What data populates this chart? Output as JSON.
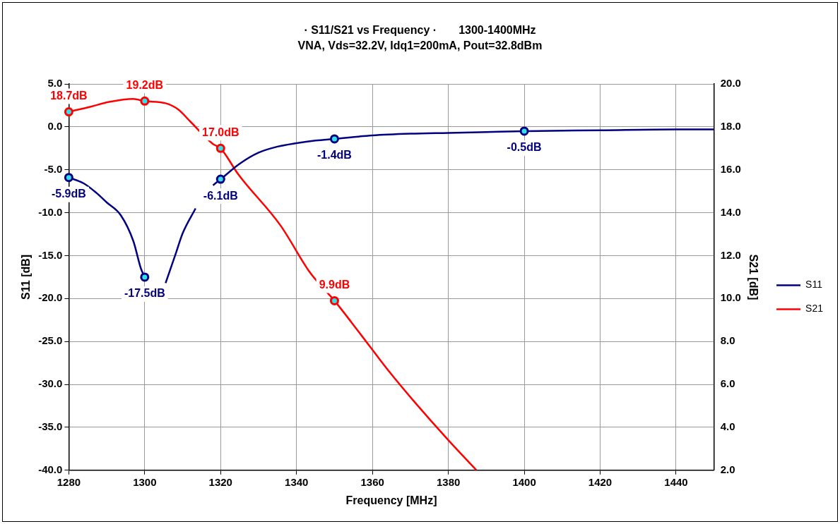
{
  "chart_data": {
    "type": "line",
    "title": "· S11/S21 vs Frequency ·       1300-1400MHz",
    "subtitle": "VNA, Vds=32.2V, Idq1=200mA, Pout=32.8dBm",
    "xlabel": "Frequency [MHz]",
    "ylabel": "S11 [dB]",
    "y2label": "S21 [dB]",
    "xlim": [
      1280,
      1450
    ],
    "xticks": [
      1280,
      1300,
      1320,
      1340,
      1360,
      1380,
      1400,
      1420,
      1440
    ],
    "ylim": [
      -40,
      5
    ],
    "yticks": [
      {
        "value": -40,
        "label": "-40.0"
      },
      {
        "value": -35,
        "label": "-35.0"
      },
      {
        "value": -30,
        "label": "-30.0"
      },
      {
        "value": -25,
        "label": "-25.0"
      },
      {
        "value": -20,
        "label": "-20.0"
      },
      {
        "value": -15,
        "label": "-15.0"
      },
      {
        "value": -10,
        "label": "-10.0"
      },
      {
        "value": -5,
        "label": "-5.0"
      },
      {
        "value": 0,
        "label": "0.0"
      },
      {
        "value": 5,
        "label": "5.0"
      }
    ],
    "y2lim": [
      2,
      20
    ],
    "y2ticks": [
      {
        "value": 2,
        "label": "2.0"
      },
      {
        "value": 4,
        "label": "4.0"
      },
      {
        "value": 6,
        "label": "6.0"
      },
      {
        "value": 8,
        "label": "8.0"
      },
      {
        "value": 10,
        "label": "10.0"
      },
      {
        "value": 12,
        "label": "12.0"
      },
      {
        "value": 14,
        "label": "14.0"
      },
      {
        "value": 16,
        "label": "16.0"
      },
      {
        "value": 18,
        "label": "18.0"
      },
      {
        "value": 20,
        "label": "20.0"
      }
    ],
    "grid": true,
    "legend": "right",
    "line_style": "solid",
    "series": [
      {
        "name": "S11",
        "color": "#000080",
        "x": [
          1280,
          1284,
          1287.3,
          1290,
          1293.7,
          1297,
          1299,
          1300,
          1302,
          1303.5,
          1305.5,
          1308,
          1310,
          1313.4,
          1316,
          1318,
          1320,
          1325,
          1330,
          1335,
          1340,
          1345,
          1350,
          1360,
          1370,
          1380,
          1390,
          1400,
          1420,
          1440,
          1450
        ],
        "values": [
          -5.9,
          -6.6,
          -7.7,
          -8.8,
          -10.3,
          -13.3,
          -16.5,
          -17.5,
          null,
          null,
          -18.2,
          -15,
          -12.4,
          -9.5,
          null,
          -6.8,
          -6.1,
          -4.3,
          -3,
          -2.3,
          -1.9,
          -1.6,
          -1.4,
          -1,
          -0.8,
          -0.7,
          -0.6,
          -0.5,
          -0.4,
          -0.3,
          -0.3
        ],
        "value_labels": [
          "-5.9dB",
          null,
          null,
          null,
          null,
          null,
          null,
          "-17.5dB",
          null,
          null,
          null,
          null,
          null,
          null,
          null,
          null,
          "-6.1dB",
          null,
          null,
          null,
          null,
          null,
          "-1.4dB",
          null,
          null,
          null,
          null,
          "-0.5dB",
          null,
          null,
          null
        ]
      },
      {
        "name": "S21",
        "color": "#ff0000",
        "axis": "y2",
        "x": [
          1280,
          1286,
          1290.6,
          1297,
          1300,
          1305.5,
          1308.9,
          1312,
          1318,
          1320,
          1324.6,
          1335.8,
          1343.6,
          1350,
          1356.6,
          1364.4,
          1371,
          1380,
          1387.4
        ],
        "values": [
          18.7,
          18.95,
          19.16,
          19.3,
          19.2,
          19.1,
          18.8,
          18.25,
          17.2,
          17,
          15.8,
          13.4,
          11.2,
          9.9,
          8.4,
          6.6,
          5.2,
          3.4,
          2
        ],
        "value_labels": [
          "18.7dB",
          null,
          null,
          null,
          "19.2dB",
          null,
          null,
          null,
          null,
          "17.0dB",
          null,
          null,
          null,
          "9.9dB",
          null,
          null,
          null,
          null,
          null
        ]
      }
    ]
  }
}
